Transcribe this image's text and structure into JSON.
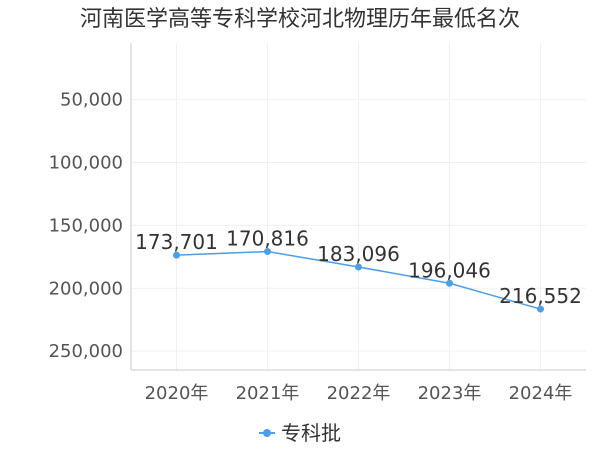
{
  "colors": {
    "series": "#4c9ee8",
    "axis": "#c8c8c8",
    "grid": "#f0f0f0"
  },
  "chart_data": {
    "type": "line",
    "title": "河南医学高等专科学校河北物理历年最低名次",
    "categories": [
      "2020年",
      "2021年",
      "2022年",
      "2023年",
      "2024年"
    ],
    "series": [
      {
        "name": "专科批",
        "values": [
          173701,
          170816,
          183096,
          196046,
          216552
        ],
        "labels": [
          "173,701",
          "170,816",
          "183,096",
          "196,046",
          "216,552"
        ]
      }
    ],
    "y_axis": {
      "inverted": true,
      "ylim": [
        5000,
        265000
      ],
      "ticks": [
        50000,
        100000,
        150000,
        200000,
        250000
      ],
      "tick_labels": [
        "50,000",
        "100,000",
        "150,000",
        "200,000",
        "250,000"
      ]
    },
    "grid": true,
    "legend_position": "bottom-center"
  }
}
